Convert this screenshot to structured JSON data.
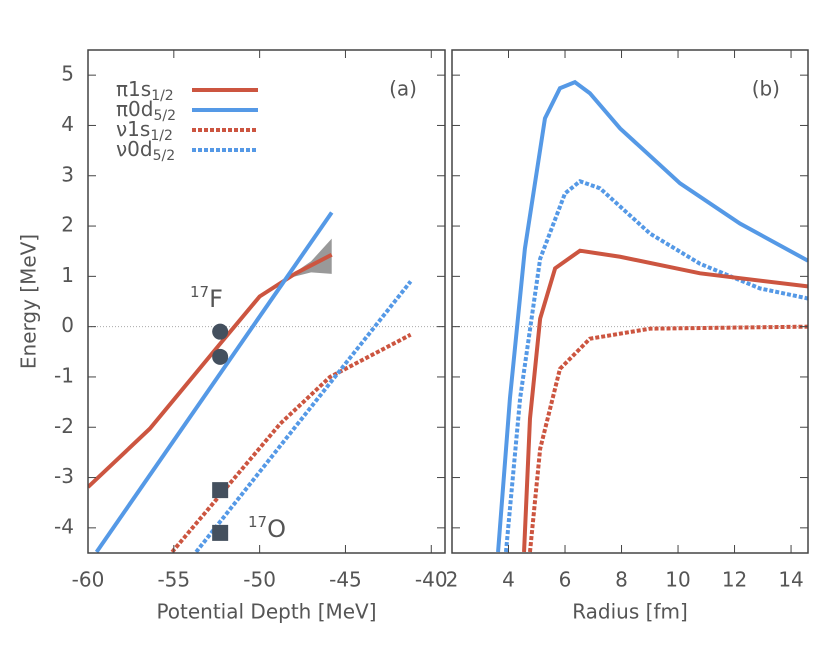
{
  "chart_data": [
    {
      "type": "line",
      "panel_label": "(a)",
      "x_label": "Potential Depth [MeV]",
      "y_label": "Energy [MeV]",
      "xlim": [
        -60,
        -39.2
      ],
      "ylim": [
        -4.5,
        5.5
      ],
      "xticks": [
        -60,
        -55,
        -50,
        -45,
        -40
      ],
      "yticks": [
        -4,
        -3,
        -2,
        -1,
        0,
        1,
        2,
        3,
        4,
        5
      ],
      "show_ytick_labels": true,
      "zero_line": true,
      "legend": "upper left",
      "band": {
        "color": "#999999",
        "x": [
          -48.5,
          -47,
          -45.8
        ],
        "lower": [
          0.95,
          1.08,
          1.05
        ],
        "upper": [
          0.95,
          1.3,
          1.75
        ]
      },
      "series": [
        {
          "name": "π1s",
          "subscript": "1/2",
          "color": "#cc5540",
          "dash": false,
          "x": [
            -60,
            -56.4,
            -52.3,
            -50,
            -47.9,
            -45.8
          ],
          "values": [
            -3.19,
            -2.03,
            -0.34,
            0.6,
            1.06,
            1.43
          ]
        },
        {
          "name": "π0d",
          "subscript": "5/2",
          "color": "#5599e6",
          "dash": false,
          "x": [
            -59.5,
            -45.8
          ],
          "values": [
            -4.48,
            2.27
          ]
        },
        {
          "name": "ν1s",
          "subscript": "1/2",
          "color": "#cc5540",
          "dash": true,
          "x": [
            -55.1,
            -48.8,
            -45.9,
            -41.2
          ],
          "values": [
            -4.48,
            -1.93,
            -1.0,
            -0.16
          ]
        },
        {
          "name": "ν0d",
          "subscript": "5/2",
          "color": "#5599e6",
          "dash": true,
          "x": [
            -53.7,
            -41.2
          ],
          "values": [
            -4.48,
            0.9
          ]
        },
        {
          "marker": "circle",
          "color": "#44505e",
          "x": [
            -52.3,
            -52.3
          ],
          "values": [
            -0.1,
            -0.6
          ]
        },
        {
          "marker": "square",
          "color": "#44505e",
          "x": [
            -52.3,
            -52.3
          ],
          "values": [
            -3.25,
            -4.1
          ]
        }
      ],
      "annotations": [
        {
          "sup": "17",
          "text": "F"
        },
        {
          "sup": "17",
          "text": "O"
        }
      ]
    },
    {
      "type": "line",
      "panel_label": "(b)",
      "x_label": "Radius [fm]",
      "xlim": [
        2,
        14.6
      ],
      "ylim": [
        -4.5,
        5.5
      ],
      "xticks": [
        2,
        4,
        6,
        8,
        10,
        12,
        14
      ],
      "yticks": [
        -4,
        -3,
        -2,
        -1,
        0,
        1,
        2,
        3,
        4,
        5
      ],
      "show_ytick_labels": false,
      "zero_line": true,
      "series": [
        {
          "color": "#5599e6",
          "dash": false,
          "x": [
            3.63,
            4.05,
            4.58,
            5.29,
            5.82,
            6.35,
            6.88,
            7.95,
            10.07,
            12.19,
            14.6
          ],
          "values": [
            -4.48,
            -1.43,
            1.55,
            4.14,
            4.74,
            4.86,
            4.64,
            3.94,
            2.85,
            2.05,
            1.31
          ]
        },
        {
          "color": "#5599e6",
          "dash": true,
          "x": [
            3.91,
            4.41,
            5.12,
            6.0,
            6.53,
            7.24,
            9.01,
            10.78,
            12.9,
            14.6
          ],
          "values": [
            -4.48,
            -1.43,
            1.35,
            2.65,
            2.89,
            2.75,
            1.85,
            1.25,
            0.76,
            0.56
          ]
        },
        {
          "color": "#cc5540",
          "dash": false,
          "x": [
            4.55,
            4.76,
            5.12,
            5.65,
            6.53,
            7.95,
            10.78,
            14.6
          ],
          "values": [
            -4.48,
            -1.83,
            0.16,
            1.16,
            1.51,
            1.39,
            1.06,
            0.8
          ]
        },
        {
          "color": "#cc5540",
          "dash": true,
          "x": [
            4.76,
            5.12,
            5.82,
            6.88,
            9.01,
            14.6
          ],
          "values": [
            -4.48,
            -2.43,
            -0.84,
            -0.24,
            -0.04,
            0
          ]
        }
      ]
    }
  ]
}
